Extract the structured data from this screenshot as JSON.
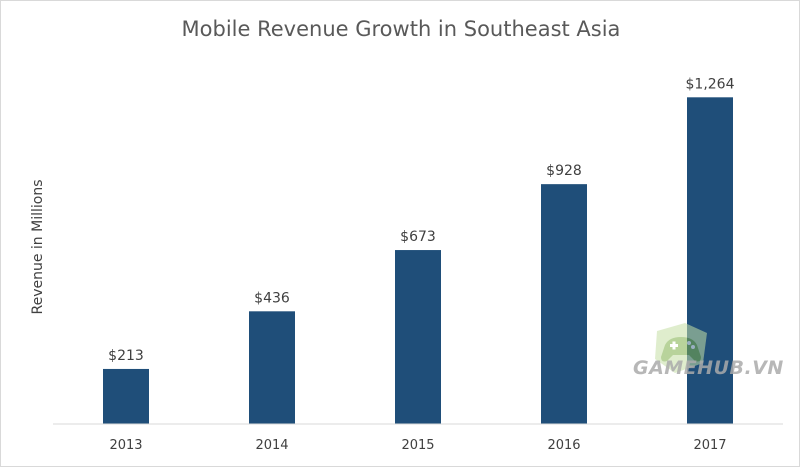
{
  "chart_data": {
    "type": "bar",
    "title": "Mobile Revenue Growth in Southeast Asia",
    "xlabel": "",
    "ylabel": "Revenue in Millions",
    "categories": [
      "2013",
      "2014",
      "2015",
      "2016",
      "2017"
    ],
    "values": [
      213,
      436,
      673,
      928,
      1264
    ],
    "data_labels": [
      "$213",
      "$436",
      "$673",
      "$928",
      "$1,264"
    ],
    "ylim": [
      0,
      1300
    ],
    "grid": false,
    "legend": "none",
    "bar_color": "#1f4e79",
    "axis_color": "#d9d9d9"
  },
  "watermark": {
    "text": "GAMEHUB.VN",
    "icon": "gamepad-icon"
  }
}
